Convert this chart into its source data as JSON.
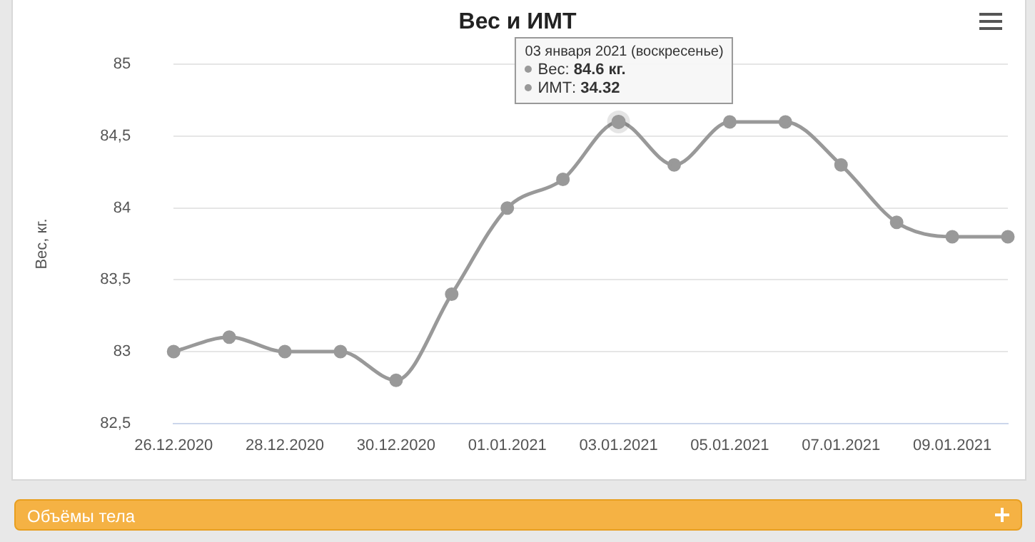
{
  "chart_data": {
    "type": "line",
    "title": "Вес и ИМТ",
    "ylabel": "Вес, кг.",
    "categories": [
      "26.12.2020",
      null,
      "28.12.2020",
      null,
      "30.12.2020",
      null,
      "01.01.2021",
      null,
      "03.01.2021",
      null,
      "05.01.2021",
      null,
      "07.01.2021",
      null,
      "09.01.2021",
      null
    ],
    "series": [
      {
        "color": "#999999",
        "values": [
          83.0,
          83.1,
          83.0,
          83.0,
          82.8,
          83.4,
          84.0,
          84.2,
          84.6,
          84.3,
          84.6,
          84.6,
          84.3,
          83.9,
          83.8,
          83.8
        ]
      }
    ],
    "ylim": [
      82.5,
      85
    ],
    "yticks": [
      {
        "value": 82.5,
        "label": "82,5"
      },
      83,
      {
        "value": 83.5,
        "label": "83,5"
      },
      84,
      {
        "value": 84.5,
        "label": "84,5"
      },
      85
    ],
    "grid": "y",
    "legend": false,
    "marker": "circle",
    "line_style": "solid",
    "annotations": [
      {
        "text": "03 января 2021 (воскресенье)\nВес: 84.6 кг.\nИМТ: 34.32",
        "x": "03.01.2021",
        "y": 84.6
      },
      "Объёмы тела"
    ]
  }
}
